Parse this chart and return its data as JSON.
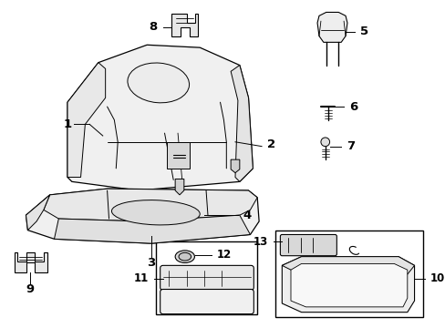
{
  "background_color": "#ffffff",
  "line_color": "#000000",
  "text_color": "#000000",
  "font_size": 8.5,
  "fig_width": 4.89,
  "fig_height": 3.6,
  "dpi": 100
}
